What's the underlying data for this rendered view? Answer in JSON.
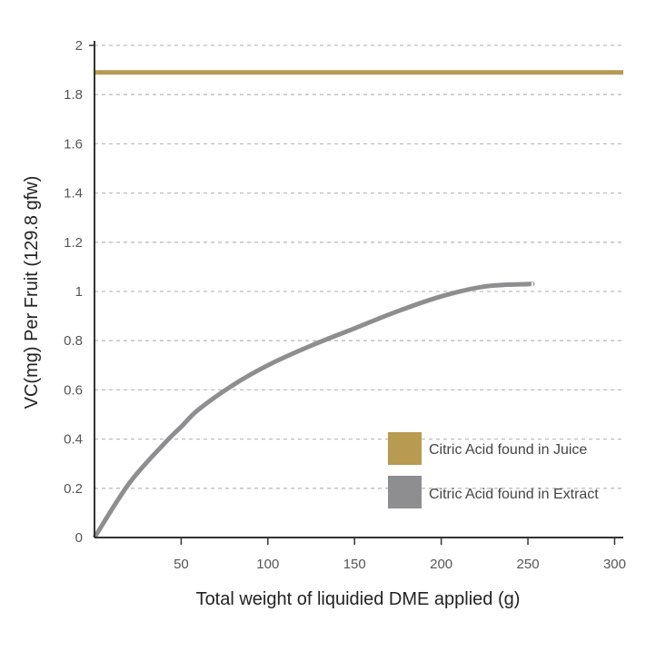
{
  "chart_data": {
    "type": "line",
    "xlabel": "Total weight of liquidied DME applied (g)",
    "ylabel": "VC(mg) Per Fruit (129.8 gfw)",
    "xlim": [
      0,
      305
    ],
    "ylim": [
      0,
      2
    ],
    "x_ticks": [
      "50",
      "100",
      "150",
      "200",
      "250",
      "300"
    ],
    "y_ticks": [
      "0",
      "0.2",
      "0.4",
      "0.6",
      "0.8",
      "1",
      "1.2",
      "1.4",
      "1.6",
      "1.8",
      "2"
    ],
    "grid": "horizontal dashed",
    "legend_position": "bottom-right",
    "series": [
      {
        "name": "Citric Acid found in Juice",
        "color": "#b89a50",
        "x": [
          0,
          305
        ],
        "y": [
          1.89,
          1.89
        ]
      },
      {
        "name": "Citric Acid found in Extract",
        "color": "#8e8e90",
        "x": [
          0,
          20,
          40,
          50,
          60,
          80,
          100,
          125,
          150,
          175,
          200,
          225,
          250,
          252
        ],
        "y": [
          0,
          0.22,
          0.38,
          0.45,
          0.52,
          0.62,
          0.7,
          0.78,
          0.85,
          0.92,
          0.98,
          1.02,
          1.03,
          1.03
        ]
      }
    ]
  }
}
